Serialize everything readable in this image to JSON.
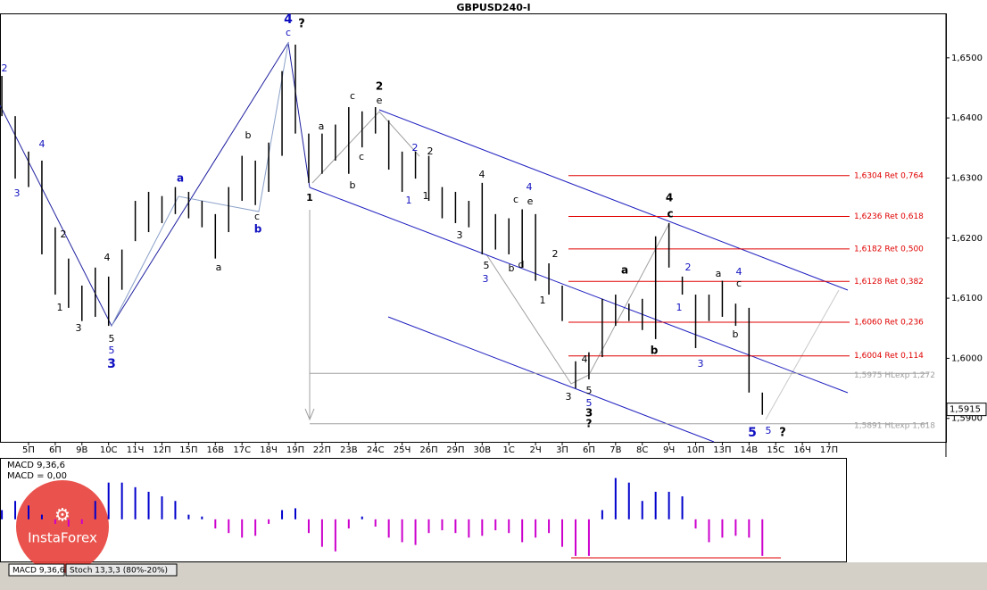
{
  "chart_data": {
    "type": "ohlc",
    "title": "GBPUSD240-I",
    "categories": [
      "5П",
      "6П",
      "9В",
      "10С",
      "11Ч",
      "12П",
      "15П",
      "16В",
      "17С",
      "18Ч",
      "19П",
      "22П",
      "23В",
      "24С",
      "25Ч",
      "26П",
      "29П",
      "30В",
      "1С",
      "2Ч",
      "3П",
      "6П",
      "7В",
      "8С",
      "9Ч",
      "10П",
      "13П",
      "14В",
      "15С",
      "16Ч",
      "17П"
    ],
    "xlim": [
      -1.07,
      34.38
    ],
    "x": [
      -1,
      -0.5,
      0,
      0.5,
      1,
      1.5,
      2,
      2.5,
      3,
      3.5,
      4,
      4.5,
      5,
      5.5,
      6,
      6.5,
      7,
      7.5,
      8,
      8.5,
      9,
      9.5,
      10,
      10.5,
      11,
      11.5,
      12,
      12.5,
      13,
      13.5,
      14,
      14.5,
      15,
      15.5,
      16,
      16.5,
      17,
      17.5,
      18,
      18.5,
      19,
      19.5,
      20,
      20.5,
      21,
      21.5,
      22,
      22.5,
      23,
      23.5,
      24,
      24.5,
      25,
      25.5,
      26,
      26.5,
      27,
      27.5
    ],
    "high": [
      1.647,
      1.6403,
      1.6344,
      1.6329,
      1.6218,
      1.6166,
      1.6121,
      1.6151,
      1.6136,
      1.6181,
      1.6262,
      1.6277,
      1.627,
      1.6285,
      1.6277,
      1.6262,
      1.624,
      1.6285,
      1.6337,
      1.6329,
      1.6359,
      1.6478,
      1.6522,
      1.6374,
      1.6374,
      1.6389,
      1.6418,
      1.6411,
      1.6418,
      1.6396,
      1.6344,
      1.6344,
      1.6337,
      1.6285,
      1.6277,
      1.6262,
      1.6292,
      1.624,
      1.6233,
      1.6248,
      1.624,
      1.6158,
      1.6121,
      1.5995,
      1.601,
      1.6099,
      1.6106,
      1.6091,
      1.6099,
      1.6203,
      1.6225,
      1.6136,
      1.6106,
      1.6106,
      1.6129,
      1.6091,
      1.6084,
      1.5943
    ],
    "low": [
      1.6403,
      1.6299,
      1.6285,
      1.6173,
      1.6106,
      1.6084,
      1.6062,
      1.6069,
      1.6054,
      1.6114,
      1.6195,
      1.621,
      1.6225,
      1.624,
      1.6233,
      1.6218,
      1.6166,
      1.621,
      1.6262,
      1.6255,
      1.6277,
      1.6337,
      1.6374,
      1.6292,
      1.6307,
      1.6329,
      1.6307,
      1.6351,
      1.6374,
      1.6314,
      1.6277,
      1.6299,
      1.6262,
      1.6233,
      1.6225,
      1.6218,
      1.6173,
      1.6181,
      1.6173,
      1.6151,
      1.6129,
      1.6106,
      1.6062,
      1.595,
      1.5965,
      1.6002,
      1.6054,
      1.6062,
      1.6047,
      1.6032,
      1.6151,
      1.6106,
      1.6017,
      1.6062,
      1.6069,
      1.6054,
      1.5943,
      1.5906
    ],
    "color": "#000000",
    "ylim": [
      1.5861,
      1.6574
    ],
    "yticks": [
      {
        "value": 1.59,
        "label": "1,5900"
      },
      {
        "value": 1.6,
        "label": "1,6000"
      },
      {
        "value": 1.61,
        "label": "1,6100"
      },
      {
        "value": 1.62,
        "label": "1,6200"
      },
      {
        "value": 1.63,
        "label": "1,6300"
      },
      {
        "value": 1.64,
        "label": "1,6400"
      },
      {
        "value": 1.65,
        "label": "1,6500"
      }
    ],
    "last_price": {
      "value": 1.5915,
      "label": "1,5915"
    },
    "fib_levels": [
      {
        "value": 1.6304,
        "label": "1,6304 Ret 0,764"
      },
      {
        "value": 1.6236,
        "label": "1,6236 Ret 0,618"
      },
      {
        "value": 1.6182,
        "label": "1,6182 Ret 0,500"
      },
      {
        "value": 1.6128,
        "label": "1,6128 Ret 0,382"
      },
      {
        "value": 1.606,
        "label": "1,6060 Ret 0,236"
      },
      {
        "value": 1.6004,
        "label": "1,6004 Ret 0,114"
      }
    ],
    "fib_color": "#e00000",
    "exp_levels": [
      {
        "value": 1.5975,
        "label": "1,5975 HLexp 1,272"
      },
      {
        "value": 1.5891,
        "label": "1,5891 HLexp 1,618"
      }
    ],
    "exp_color": "#a0a0a0",
    "annotations": [
      "4",
      "c",
      "?",
      "2",
      "4",
      "3",
      "2",
      "1",
      "3",
      "4",
      "5",
      "5",
      "3",
      "a",
      "b",
      "c",
      "b",
      "a",
      "1",
      "a",
      "b",
      "c",
      "c",
      "2",
      "e",
      "2",
      "1",
      "2",
      "1",
      "3",
      "4",
      "5",
      "3",
      "c",
      "4",
      "e",
      "b",
      "d",
      "2",
      "1",
      "4",
      "3",
      "5",
      "5",
      "3",
      "?",
      "a",
      "b",
      "4",
      "c",
      "2",
      "1",
      "3",
      "a",
      "4",
      "c",
      "b",
      "5",
      "5",
      "?"
    ],
    "macd": {
      "label": "MACD 9,36,6",
      "value_text": "MACD = 0,00",
      "ylim": [
        -0.0045,
        0.0065
      ],
      "pos_color": "#0000cc",
      "neg_color": "#cc00cc",
      "values": [
        0.001,
        0.002,
        0.0015,
        0.0005,
        -0.0005,
        -0.0008,
        -0.0005,
        0.002,
        0.004,
        0.004,
        0.0035,
        0.003,
        0.0025,
        0.002,
        0.0005,
        0.0003,
        -0.001,
        -0.0015,
        -0.002,
        -0.0018,
        -0.0005,
        0.001,
        0.0012,
        -0.0015,
        -0.003,
        -0.0035,
        -0.001,
        0.0003,
        -0.0008,
        -0.002,
        -0.0025,
        -0.0028,
        -0.0015,
        -0.0012,
        -0.0015,
        -0.002,
        -0.0018,
        -0.0012,
        -0.0015,
        -0.0025,
        -0.002,
        -0.0015,
        -0.003,
        -0.004,
        -0.004,
        0.001,
        0.0045,
        0.004,
        0.002,
        0.003,
        0.003,
        0.0025,
        -0.001,
        -0.0025,
        -0.002,
        -0.0018,
        -0.002,
        -0.004
      ]
    },
    "tabs": [
      "MACD 9,36,6",
      "Stoch 13,3,3 (80%-20%)"
    ],
    "logo": "InstaForex"
  }
}
